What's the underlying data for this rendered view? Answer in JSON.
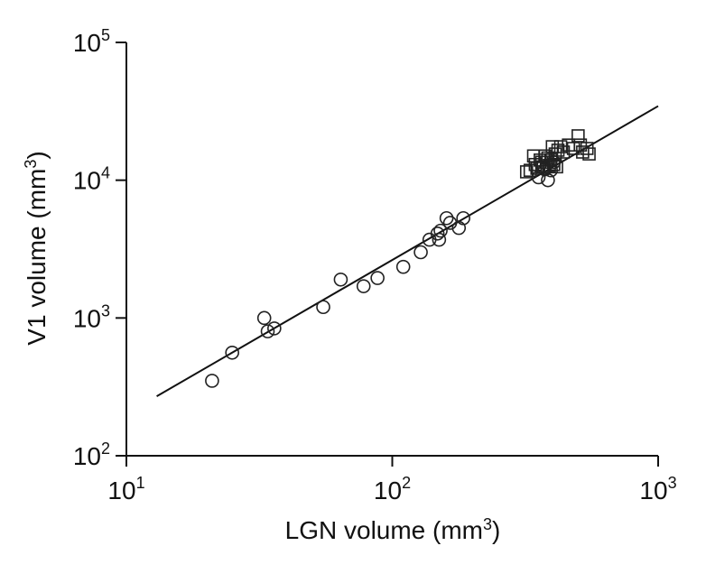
{
  "chart_data": {
    "type": "scatter",
    "title": "",
    "xlabel": {
      "text": "LGN volume (mm",
      "sup": "3",
      "close": ")"
    },
    "ylabel": {
      "text": "V1 volume (mm",
      "sup": "3",
      "close": ")"
    },
    "x_scale": "log",
    "y_scale": "log",
    "xlim": [
      10,
      1000
    ],
    "ylim": [
      100,
      100000
    ],
    "x_ticks": [
      {
        "value": 10,
        "base": "10",
        "exp": "1"
      },
      {
        "value": 100,
        "base": "10",
        "exp": "2"
      },
      {
        "value": 1000,
        "base": "10",
        "exp": "3"
      }
    ],
    "y_ticks": [
      {
        "value": 100,
        "base": "10",
        "exp": "2"
      },
      {
        "value": 1000,
        "base": "10",
        "exp": "3"
      },
      {
        "value": 10000,
        "base": "10",
        "exp": "4"
      },
      {
        "value": 100000,
        "base": "10",
        "exp": "5"
      }
    ],
    "grid": false,
    "legend": "none",
    "series": [
      {
        "marker": "circle",
        "points": [
          [
            21,
            350
          ],
          [
            25,
            560
          ],
          [
            33,
            1000
          ],
          [
            34,
            800
          ],
          [
            36,
            840
          ],
          [
            55,
            1200
          ],
          [
            64,
            1900
          ],
          [
            78,
            1700
          ],
          [
            88,
            1950
          ],
          [
            110,
            2350
          ],
          [
            128,
            3000
          ],
          [
            138,
            3700
          ],
          [
            148,
            4100
          ],
          [
            150,
            3700
          ],
          [
            152,
            4300
          ],
          [
            160,
            5300
          ],
          [
            165,
            4900
          ],
          [
            178,
            4500
          ],
          [
            185,
            5300
          ],
          [
            355,
            10500
          ],
          [
            375,
            12000
          ],
          [
            385,
            10000
          ],
          [
            395,
            11800
          ],
          [
            405,
            13500
          ]
        ]
      },
      {
        "marker": "square",
        "points": [
          [
            320,
            11500
          ],
          [
            330,
            11800
          ],
          [
            340,
            15000
          ],
          [
            345,
            13000
          ],
          [
            350,
            12200
          ],
          [
            360,
            14000
          ],
          [
            365,
            13500
          ],
          [
            370,
            12500
          ],
          [
            375,
            15000
          ],
          [
            380,
            13500
          ],
          [
            385,
            14500
          ],
          [
            390,
            12800
          ],
          [
            395,
            14000
          ],
          [
            400,
            17500
          ],
          [
            405,
            13000
          ],
          [
            410,
            15500
          ],
          [
            415,
            12500
          ],
          [
            420,
            16500
          ],
          [
            430,
            17500
          ],
          [
            440,
            16000
          ],
          [
            460,
            18000
          ],
          [
            480,
            17000
          ],
          [
            500,
            21000
          ],
          [
            510,
            18000
          ],
          [
            520,
            16000
          ],
          [
            540,
            17000
          ],
          [
            550,
            15500
          ]
        ]
      }
    ],
    "fit_line": {
      "x": [
        13,
        1000
      ],
      "y": [
        270,
        34500
      ]
    }
  }
}
